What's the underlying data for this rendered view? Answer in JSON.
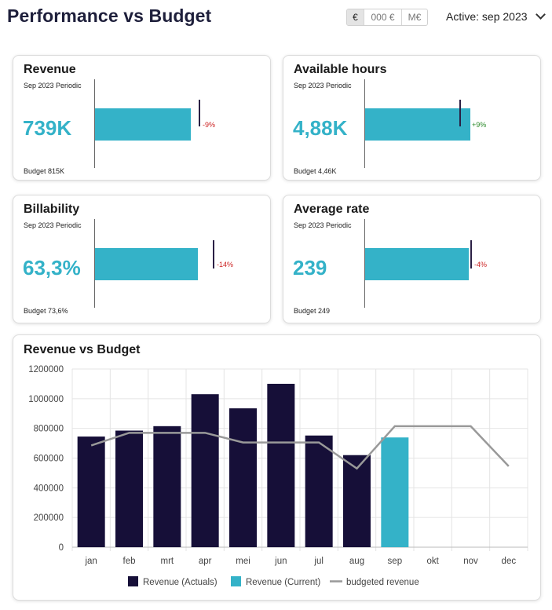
{
  "header": {
    "title": "Performance vs Budget",
    "units": [
      "€",
      "000 €",
      "M€"
    ],
    "period_label": "Active: sep 2023"
  },
  "kpis": {
    "revenue": {
      "title": "Revenue",
      "period": "Sep 2023 Periodic",
      "value": "739K",
      "budget": "Budget 815K",
      "variance": "-9%"
    },
    "hours": {
      "title": "Available hours",
      "period": "Sep 2023 Periodic",
      "value": "4,88K",
      "budget": "Budget 4,46K",
      "variance": "+9%"
    },
    "billability": {
      "title": "Billability",
      "period": "Sep 2023 Periodic",
      "value": "63,3%",
      "budget": "Budget 73,6%",
      "variance": "-14%"
    },
    "rate": {
      "title": "Average rate",
      "period": "Sep 2023 Periodic",
      "value": "239",
      "budget": "Budget 249",
      "variance": "-4%"
    }
  },
  "colors": {
    "accent": "#34b2c8",
    "actuals": "#160f38",
    "budget_line": "#999999",
    "negative": "#cc2222",
    "positive": "#2b8a2b"
  },
  "chart_data": {
    "type": "bar",
    "title": "Revenue vs Budget",
    "categories": [
      "jan",
      "feb",
      "mrt",
      "apr",
      "mei",
      "jun",
      "jul",
      "aug",
      "sep",
      "okt",
      "nov",
      "dec"
    ],
    "ylim": [
      0,
      1200000
    ],
    "yticks": [
      "1200000",
      "1000000",
      "800000",
      "600000",
      "400000",
      "200000",
      "0"
    ],
    "grid": true,
    "legend_position": "bottom",
    "series": [
      {
        "name": "Revenue (Actuals)",
        "type": "bar",
        "color": "#160f38",
        "values": [
          745000,
          785000,
          815000,
          1030000,
          935000,
          1100000,
          752000,
          620000,
          null,
          null,
          null,
          null
        ]
      },
      {
        "name": "Revenue (Current)",
        "type": "bar",
        "color": "#34b2c8",
        "values": [
          null,
          null,
          null,
          null,
          null,
          null,
          null,
          null,
          739000,
          null,
          null,
          null
        ]
      },
      {
        "name": "budgeted revenue",
        "type": "line",
        "color": "#999999",
        "values": [
          685000,
          770000,
          770000,
          770000,
          705000,
          705000,
          705000,
          530000,
          815000,
          815000,
          815000,
          545000
        ]
      }
    ]
  }
}
